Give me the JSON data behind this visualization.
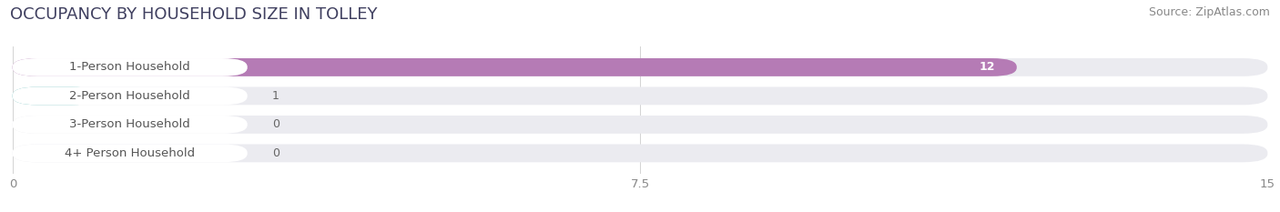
{
  "title": "OCCUPANCY BY HOUSEHOLD SIZE IN TOLLEY",
  "source": "Source: ZipAtlas.com",
  "categories": [
    "1-Person Household",
    "2-Person Household",
    "3-Person Household",
    "4+ Person Household"
  ],
  "values": [
    12,
    1,
    0,
    0
  ],
  "bar_colors": [
    "#b57bb5",
    "#65c0bc",
    "#a8a8d8",
    "#f0a0b8"
  ],
  "xlim": [
    0,
    15
  ],
  "xticks": [
    0,
    7.5,
    15
  ],
  "bar_height": 0.62,
  "background_color": "#ffffff",
  "bar_bg_color": "#ebebf0",
  "title_fontsize": 13,
  "source_fontsize": 9,
  "label_fontsize": 9.5,
  "value_fontsize": 9
}
